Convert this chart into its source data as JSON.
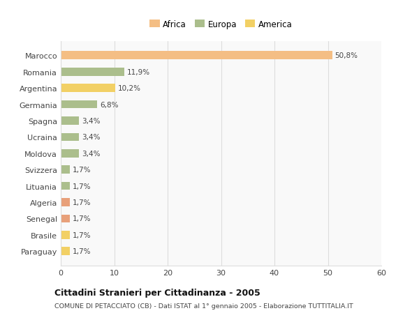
{
  "countries": [
    "Marocco",
    "Romania",
    "Argentina",
    "Germania",
    "Spagna",
    "Ucraina",
    "Moldova",
    "Svizzera",
    "Lituania",
    "Algeria",
    "Senegal",
    "Brasile",
    "Paraguay"
  ],
  "values": [
    50.8,
    11.9,
    10.2,
    6.8,
    3.4,
    3.4,
    3.4,
    1.7,
    1.7,
    1.7,
    1.7,
    1.7,
    1.7
  ],
  "labels": [
    "50,8%",
    "11,9%",
    "10,2%",
    "6,8%",
    "3,4%",
    "3,4%",
    "3,4%",
    "1,7%",
    "1,7%",
    "1,7%",
    "1,7%",
    "1,7%",
    "1,7%"
  ],
  "colors": [
    "#F4BE84",
    "#ABBE8C",
    "#F2D065",
    "#ABBE8C",
    "#ABBE8C",
    "#ABBE8C",
    "#ABBE8C",
    "#ABBE8C",
    "#ABBE8C",
    "#E8A07A",
    "#E8A07A",
    "#F2D065",
    "#F2D065"
  ],
  "legend_labels": [
    "Africa",
    "Europa",
    "America"
  ],
  "legend_colors": [
    "#F4BE84",
    "#ABBE8C",
    "#F2D065"
  ],
  "title": "Cittadini Stranieri per Cittadinanza - 2005",
  "subtitle": "COMUNE DI PETACCIATO (CB) - Dati ISTAT al 1° gennaio 2005 - Elaborazione TUTTITALIA.IT",
  "xlim": [
    0,
    60
  ],
  "xticks": [
    0,
    10,
    20,
    30,
    40,
    50,
    60
  ],
  "background_color": "#FFFFFF",
  "plot_bg_color": "#F9F9F9",
  "grid_color": "#DDDDDD"
}
